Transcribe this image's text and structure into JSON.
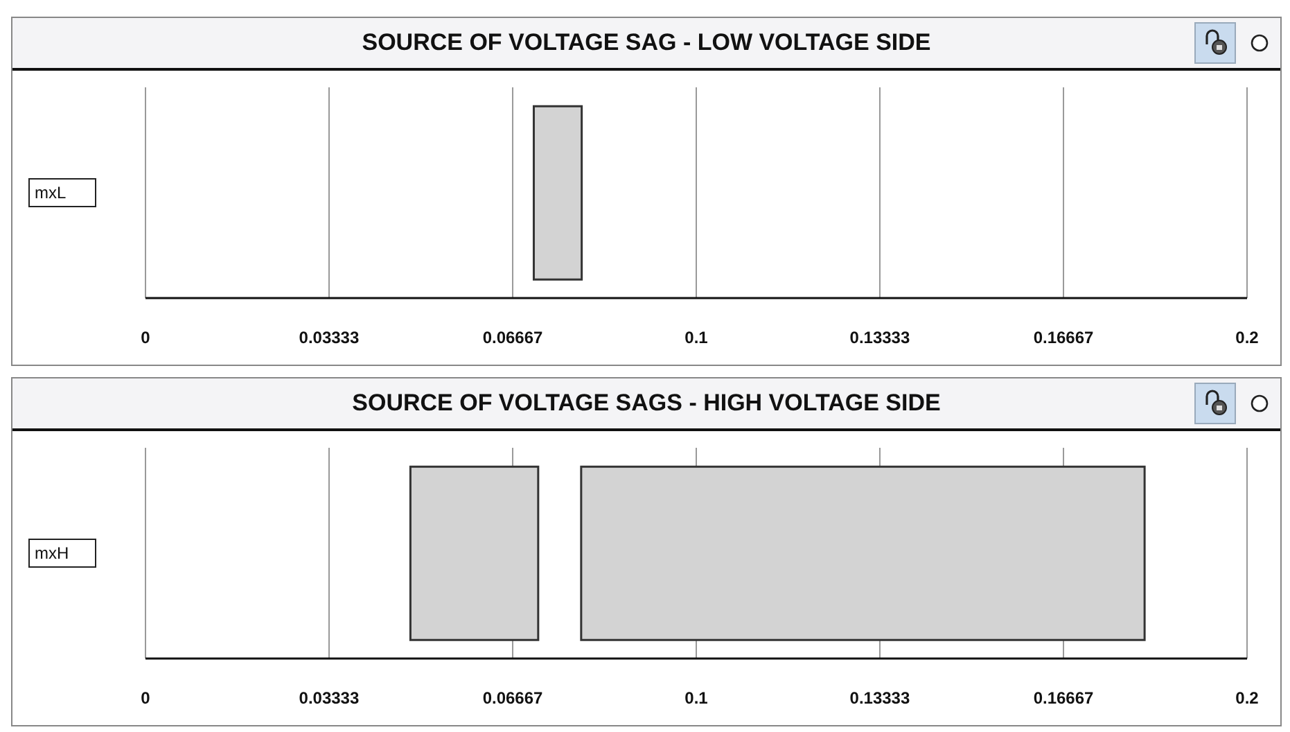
{
  "chart_data": [
    {
      "type": "bar",
      "title": "SOURCE OF VOLTAGE SAG - LOW VOLTAGE SIDE",
      "orientation": "horizontal",
      "categories": [
        "mxL"
      ],
      "grid": "x",
      "xlim": [
        0,
        0.2
      ],
      "xticks": [
        0,
        0.03333,
        0.06667,
        0.1,
        0.13333,
        0.16667,
        0.2
      ],
      "series": [
        {
          "color": "#d3d3d3",
          "base": [
            0.0705
          ],
          "values": [
            0.0087
          ]
        }
      ]
    },
    {
      "type": "bar",
      "title": "SOURCE OF VOLTAGE SAGS - HIGH VOLTAGE SIDE",
      "orientation": "horizontal",
      "categories": [
        "mxH"
      ],
      "grid": "x",
      "xlim": [
        0,
        0.2
      ],
      "xticks": [
        0,
        0.03333,
        0.06667,
        0.1,
        0.13333,
        0.16667,
        0.2
      ],
      "series": [
        {
          "color": "#d3d3d3",
          "base": [
            0.0481
          ],
          "values": [
            0.0232
          ]
        },
        {
          "color": "#d3d3d3",
          "base": [
            0.0791
          ],
          "values": [
            0.1023
          ]
        }
      ]
    }
  ]
}
